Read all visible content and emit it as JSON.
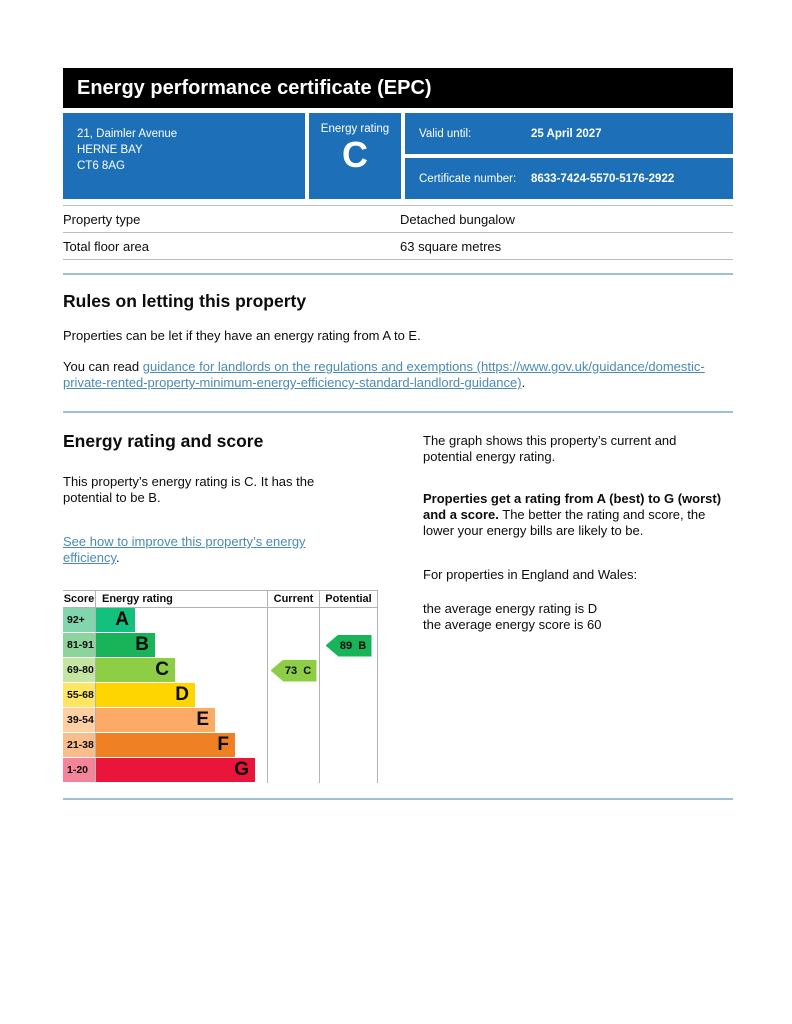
{
  "header": {
    "title": "Energy performance certificate (EPC)"
  },
  "banner": {
    "background_color": "#1d70b8",
    "address_lines": [
      "21, Daimler Avenue",
      "HERNE BAY",
      "CT6 8AG"
    ],
    "energy_rating_label": "Energy rating",
    "energy_rating_value": "C",
    "valid_until_label": "Valid until:",
    "valid_until_value": "25 April 2027",
    "certificate_number_label": "Certificate number:",
    "certificate_number_value": "8633-7424-5570-5176-2922"
  },
  "property_details": {
    "rows": [
      {
        "label": "Property type",
        "value": "Detached bungalow"
      },
      {
        "label": "Total floor area",
        "value": "63 square metres"
      }
    ]
  },
  "letting_section": {
    "heading": "Rules on letting this property",
    "paragraph": "Properties can be let if they have an energy rating from A to E.",
    "link_prefix": "You can read ",
    "link_text": "guidance for landlords on the regulations and exemptions (https://www.gov.uk/guidance/domestic-private-rented-property-minimum-energy-efficiency-standard-landlord-guidance)",
    "link_suffix": "."
  },
  "rating_section": {
    "heading": "Energy rating and score",
    "summary": "This property’s energy rating is C. It has the potential to be B.",
    "improve_link_text": "See how to improve this property’s energy efficiency",
    "improve_link_suffix": ".",
    "right_para_1": "The graph shows this property’s current and potential energy rating.",
    "right_para_2_bold": "Properties get a rating from A (best) to G (worst) and a score.",
    "right_para_2_rest": " The better the rating and score, the lower your energy bills are likely to be.",
    "right_para_3": "For properties in England and Wales:",
    "right_line_avg_rating": "the average energy rating is D",
    "right_line_avg_score": "the average energy score is 60"
  },
  "chart_data": {
    "type": "bar",
    "title": "Energy rating and score",
    "headers": {
      "score": "Score",
      "rating": "Energy rating",
      "current": "Current",
      "potential": "Potential"
    },
    "bands": [
      {
        "score": "92+",
        "letter": "A",
        "color": "#14c07d",
        "tint": "#82d6ae"
      },
      {
        "score": "81-91",
        "letter": "B",
        "color": "#19b459",
        "tint": "#8cd39c"
      },
      {
        "score": "69-80",
        "letter": "C",
        "color": "#8dce46",
        "tint": "#c5e6a2"
      },
      {
        "score": "55-68",
        "letter": "D",
        "color": "#ffd500",
        "tint": "#ffe662"
      },
      {
        "score": "39-54",
        "letter": "E",
        "color": "#fcaa65",
        "tint": "#fdcfa2"
      },
      {
        "score": "21-38",
        "letter": "F",
        "color": "#ef8023",
        "tint": "#f8bd8b"
      },
      {
        "score": "1-20",
        "letter": "G",
        "color": "#e9153b",
        "tint": "#f4849a"
      }
    ],
    "current": {
      "value": 73,
      "letter": "C"
    },
    "potential": {
      "value": 89,
      "letter": "B"
    },
    "layout": {
      "legend": "none",
      "grid": "off"
    }
  }
}
